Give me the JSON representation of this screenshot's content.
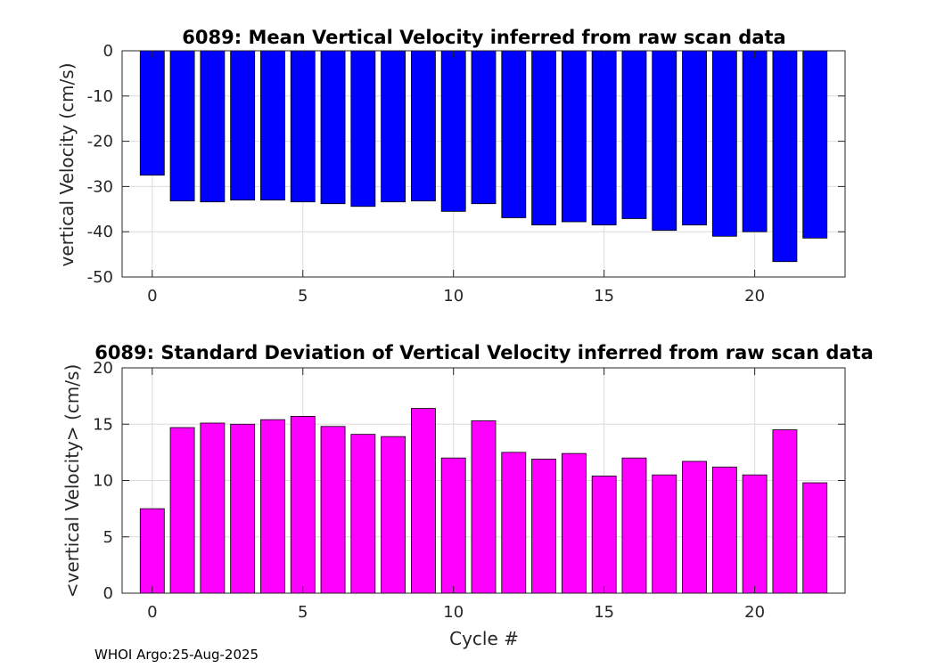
{
  "footer_text": "WHOI Argo:25-Aug-2025",
  "chart_data": [
    {
      "type": "bar",
      "title": "6089: Mean Vertical Velocity inferred from raw scan data",
      "xlabel": "",
      "ylabel": "vertical Velocity (cm/s)",
      "x": [
        0,
        1,
        2,
        3,
        4,
        5,
        6,
        7,
        8,
        9,
        10,
        11,
        12,
        13,
        14,
        15,
        16,
        17,
        18,
        19,
        20,
        21,
        22
      ],
      "values": [
        -27.5,
        -33.2,
        -33.4,
        -33.0,
        -33.0,
        -33.4,
        -33.8,
        -34.4,
        -33.4,
        -33.2,
        -35.5,
        -33.8,
        -36.9,
        -38.5,
        -37.8,
        -38.5,
        -37.1,
        -39.7,
        -38.5,
        -41.0,
        -40.0,
        -46.6,
        -41.4
      ],
      "xlim": [
        -1,
        23
      ],
      "ylim": [
        -50,
        0
      ],
      "xticks": [
        0,
        5,
        10,
        15,
        20
      ],
      "yticks": [
        -50,
        -40,
        -30,
        -20,
        -10,
        0
      ],
      "bar_color": "#0000ff",
      "grid": true
    },
    {
      "type": "bar",
      "title": "6089: Standard Deviation of Vertical Velocity inferred from raw scan data",
      "xlabel": "Cycle #",
      "ylabel": "<vertical Velocity> (cm/s)",
      "x": [
        0,
        1,
        2,
        3,
        4,
        5,
        6,
        7,
        8,
        9,
        10,
        11,
        12,
        13,
        14,
        15,
        16,
        17,
        18,
        19,
        20,
        21,
        22
      ],
      "values": [
        7.5,
        14.7,
        15.1,
        15.0,
        15.4,
        15.7,
        14.8,
        14.1,
        13.9,
        16.4,
        12.0,
        15.3,
        12.5,
        11.9,
        12.4,
        10.4,
        12.0,
        10.5,
        11.7,
        11.2,
        10.5,
        14.5,
        9.8
      ],
      "xlim": [
        -1,
        23
      ],
      "ylim": [
        0,
        20
      ],
      "xticks": [
        0,
        5,
        10,
        15,
        20
      ],
      "yticks": [
        0,
        5,
        10,
        15,
        20
      ],
      "bar_color": "#ff00ff",
      "grid": true
    }
  ]
}
